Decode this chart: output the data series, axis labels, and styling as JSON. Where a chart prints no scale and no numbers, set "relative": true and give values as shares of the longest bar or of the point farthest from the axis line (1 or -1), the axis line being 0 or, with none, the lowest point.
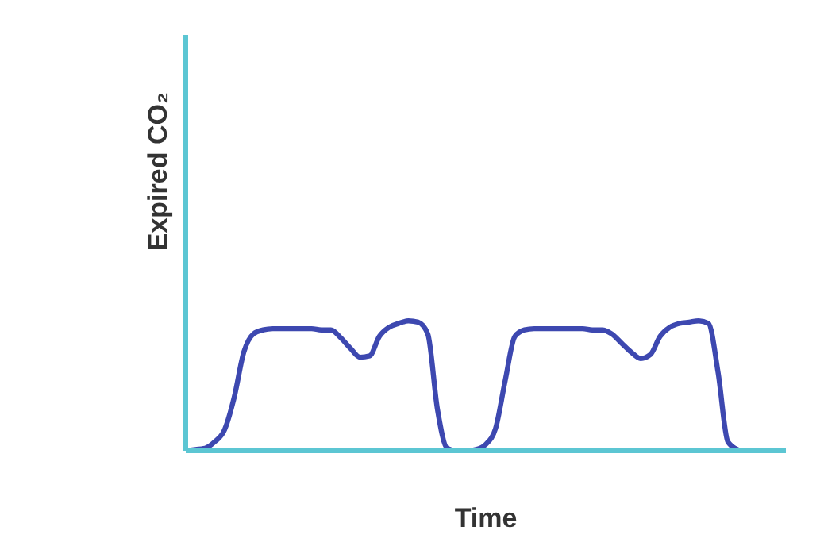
{
  "chart_data": {
    "type": "line",
    "relative": true,
    "xlabel": "Time",
    "ylabel": "Expired CO₂",
    "categories": [
      null,
      null,
      null,
      null,
      null,
      null,
      null,
      null,
      null,
      null,
      null,
      null,
      null,
      null,
      null,
      null,
      null,
      null,
      null,
      null,
      null,
      null,
      null,
      null,
      null,
      null,
      null,
      null,
      null,
      null,
      null,
      null,
      null,
      null,
      null,
      null,
      null,
      null,
      null,
      null,
      null,
      null,
      null,
      null,
      null,
      null,
      null,
      null,
      null,
      null,
      null,
      null,
      null,
      null,
      null,
      null,
      null,
      null,
      null,
      null,
      null,
      null,
      null
    ],
    "series": [
      {
        "color": "#3d48b0",
        "values": [
          0,
          0.01,
          0.02,
          0.07,
          0.16,
          0.41,
          0.76,
          0.9,
          0.93,
          0.94,
          0.94,
          0.94,
          0.94,
          0.94,
          0.93,
          0.93,
          0.87,
          0.79,
          0.72,
          0.73,
          0.88,
          0.95,
          0.98,
          1,
          0.99,
          0.9,
          0.32,
          0.02,
          0,
          0,
          0.01,
          0.05,
          0.17,
          0.54,
          0.88,
          0.93,
          0.94,
          0.94,
          0.94,
          0.94,
          0.94,
          0.94,
          0.93,
          0.93,
          0.9,
          0.83,
          0.76,
          0.71,
          0.74,
          0.88,
          0.95,
          0.98,
          0.99,
          1,
          0.98,
          0.6,
          0.07,
          0.01,
          null,
          null,
          null,
          null,
          null
        ]
      }
    ],
    "grid": false,
    "legend": false,
    "marker": "none",
    "line_style": "solid"
  }
}
